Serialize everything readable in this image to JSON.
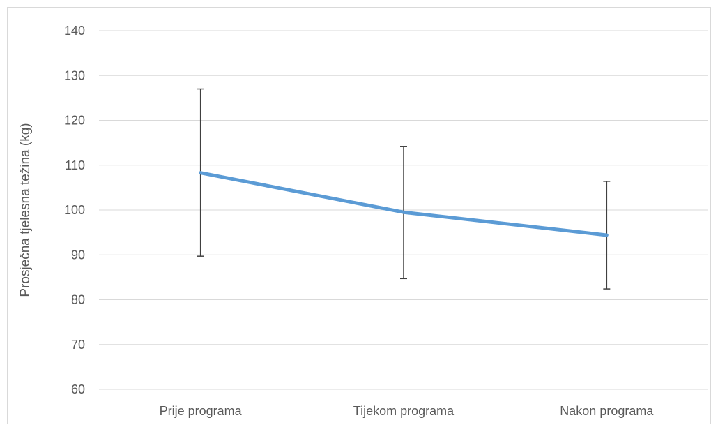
{
  "chart_data": {
    "type": "line",
    "title": "",
    "xlabel": "",
    "ylabel": "Prosječna tjelesna težina (kg)",
    "categories": [
      "Prije programa",
      "Tijekom programa",
      "Nakon programa"
    ],
    "series": [
      {
        "values": [
          108.3,
          99.5,
          94.4
        ],
        "error_low": [
          89.7,
          84.7,
          82.4
        ],
        "error_high": [
          127.0,
          114.2,
          106.4
        ],
        "color": "#5b9bd5"
      }
    ],
    "ylim": [
      60,
      140
    ],
    "yticks": [
      60,
      70,
      80,
      90,
      100,
      110,
      120,
      130,
      140
    ],
    "grid": true,
    "legend": "none"
  }
}
